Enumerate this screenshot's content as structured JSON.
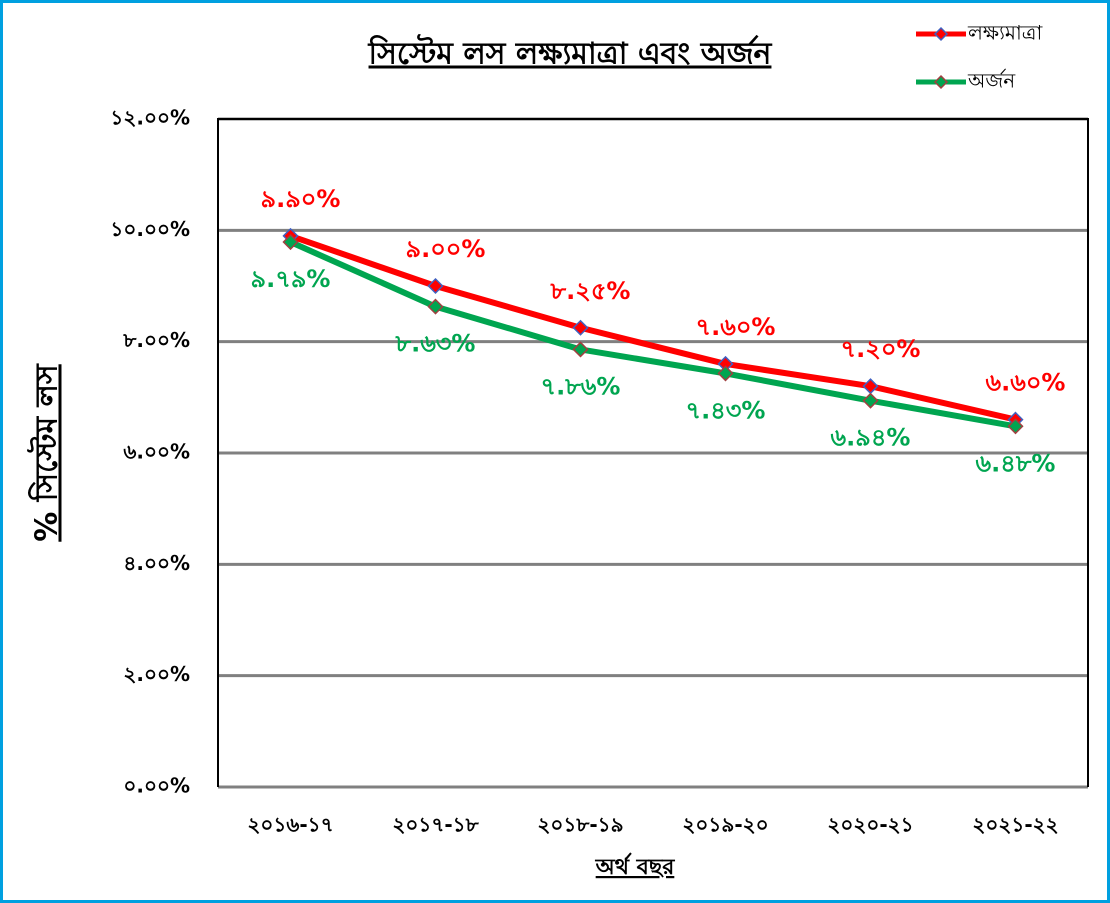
{
  "chart_data": {
    "type": "line",
    "title": "সিস্টেম লস লক্ষ্যমাত্রা এবং অর্জন",
    "x_label": "অর্থ বছর",
    "y_label": "% সিস্টেম লস",
    "categories": [
      "২০১৬-১৭",
      "২০১৭-১৮",
      "২০১৮-১৯",
      "২০১৯-২০",
      "২০২০-২১",
      "২০২১-২২"
    ],
    "series": [
      {
        "name": "লক্ষ্যমাত্রা",
        "color": "#ff0000",
        "values": [
          9.9,
          9.0,
          8.25,
          7.6,
          7.2,
          6.6
        ],
        "value_labels": [
          "৯.৯০%",
          "৯.০০%",
          "৮.২৫%",
          "৭.৬০%",
          "৭.২০%",
          "৬.৬০%"
        ]
      },
      {
        "name": "অর্জন",
        "color": "#00a550",
        "values": [
          9.79,
          8.63,
          7.86,
          7.43,
          6.94,
          6.48
        ],
        "value_labels": [
          "৯.৭৯%",
          "৮.৬৩%",
          "৭.৮৬%",
          "৭.৪৩%",
          "৬.৯৪%",
          "৬.৪৮%"
        ]
      }
    ],
    "ylim": [
      0,
      12
    ],
    "yticks": [
      {
        "value": 0,
        "label": "০.০০%"
      },
      {
        "value": 2,
        "label": "২.০০%"
      },
      {
        "value": 4,
        "label": "৪.০০%"
      },
      {
        "value": 6,
        "label": "৬.০০%"
      },
      {
        "value": 8,
        "label": "৮.০০%"
      },
      {
        "value": 10,
        "label": "১০.০০%"
      },
      {
        "value": 12,
        "label": "১২.০০%"
      }
    ],
    "grid": true,
    "legend": "top-right"
  }
}
